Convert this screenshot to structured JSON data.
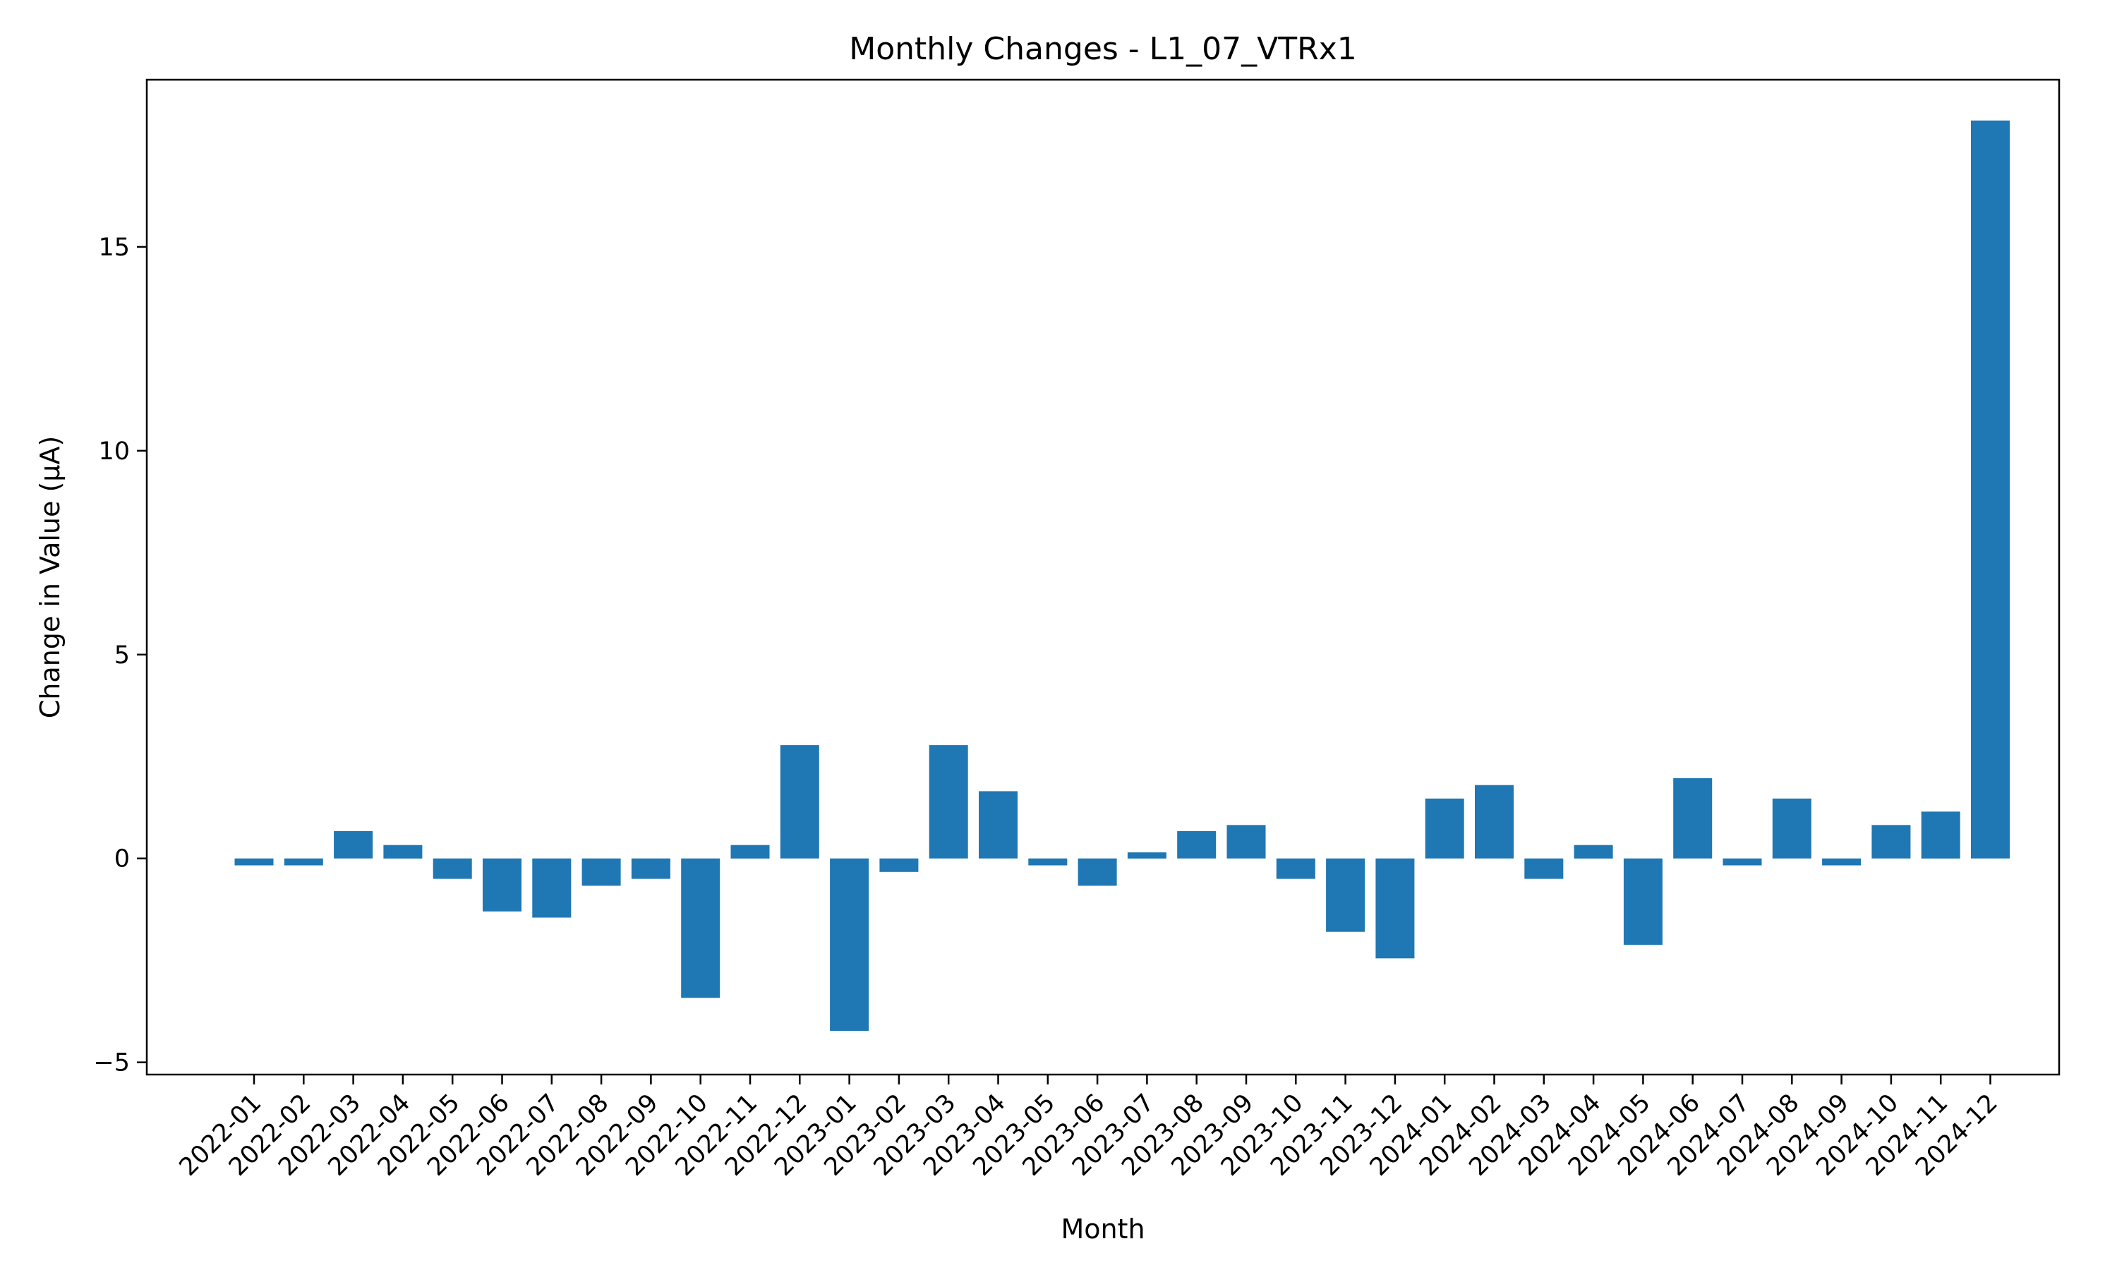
{
  "chart_data": {
    "type": "bar",
    "title": "Monthly Changes - L1_07_VTRx1",
    "xlabel": "Month",
    "ylabel": "Change in Value (μA)",
    "categories": [
      "2022-01",
      "2022-02",
      "2022-03",
      "2022-04",
      "2022-05",
      "2022-06",
      "2022-07",
      "2022-08",
      "2022-09",
      "2022-10",
      "2022-11",
      "2022-12",
      "2023-01",
      "2023-02",
      "2023-03",
      "2023-04",
      "2023-05",
      "2023-06",
      "2023-07",
      "2023-08",
      "2023-09",
      "2023-10",
      "2023-11",
      "2023-12",
      "2024-01",
      "2024-02",
      "2024-03",
      "2024-04",
      "2024-05",
      "2024-06",
      "2024-07",
      "2024-08",
      "2024-09",
      "2024-10",
      "2024-11",
      "2024-12"
    ],
    "values": [
      -0.17,
      -0.17,
      0.67,
      0.33,
      -0.5,
      -1.3,
      -1.45,
      -0.67,
      -0.5,
      -3.42,
      0.33,
      2.78,
      -4.23,
      -0.33,
      2.78,
      1.65,
      -0.17,
      -0.67,
      0.15,
      0.67,
      0.82,
      -0.5,
      -1.8,
      -2.45,
      1.47,
      1.8,
      -0.5,
      0.33,
      -2.12,
      1.97,
      -0.17,
      1.47,
      -0.17,
      0.82,
      1.15,
      18.1
    ],
    "yticks": [
      -5,
      0,
      5,
      10,
      15
    ],
    "ytick_labels": [
      "−5",
      "0",
      "5",
      "10",
      "15"
    ],
    "ylim": [
      -5.3,
      19.1
    ],
    "grid": false,
    "bar_color": "#1f77b4"
  }
}
